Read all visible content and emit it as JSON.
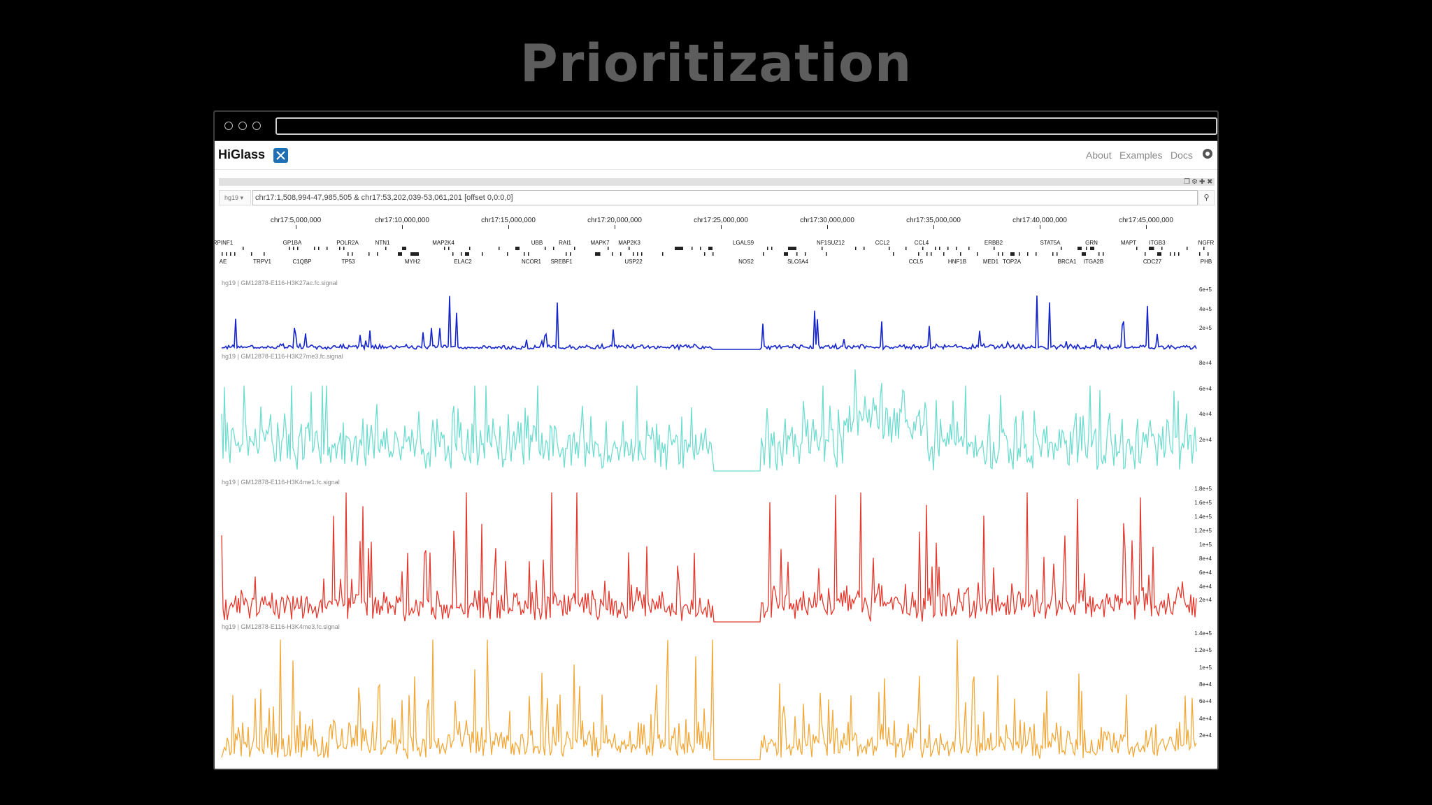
{
  "slide": {
    "title": "Prioritization"
  },
  "higlass": {
    "title": "HiGlass",
    "nav": [
      "About",
      "Examples",
      "Docs"
    ],
    "github_icon": "github-icon",
    "assembly": "hg19",
    "location": "chr17:1,508,994-47,985,505 & chr17:53,202,039-53,061,201 [offset 0,0:0,0]"
  },
  "axis_ticks": [
    "chr17:5,000,000",
    "chr17:10,000,000",
    "chr17:15,000,000",
    "chr17:20,000,000",
    "chr17:25,000,000",
    "chr17:30,000,000",
    "chr17:35,000,000",
    "chr17:40,000,000",
    "chr17:45,000,000"
  ],
  "genes_top": [
    "RPINF1",
    "GP1BA",
    "POLR2A",
    "NTN1",
    "MAP2K4",
    "UBB",
    "RAI1",
    "MAPK7",
    "MAP2K3",
    "LGALS9",
    "NF1SUZ12",
    "CCL2",
    "CCL4",
    "ERBB2",
    "STAT5A",
    "GRN",
    "MAPT",
    "ITGB3",
    "NGFR"
  ],
  "genes_bottom": [
    "AE",
    "TRPV1",
    "C1QBP",
    "TP53",
    "MYH2",
    "ELAC2",
    "NCOR1",
    "SREBF1",
    "USP22",
    "NOS2",
    "SLC6A4",
    "CCL5",
    "HNF1B",
    "MED1",
    "TOP2A",
    "BRCA1",
    "ITGA2B",
    "CDC27",
    "PHB"
  ],
  "tracks": [
    {
      "title": "hg19 | GM12878-E116-H3K27ac.fc.signal",
      "color": "#1525c9",
      "axis": [
        "6e+5",
        "4e+5",
        "2e+5"
      ]
    },
    {
      "title": "hg19 | GM12878-E116-H3K27me3.fc.signal",
      "color": "#6fdcd0",
      "axis": [
        "8e+4",
        "6e+4",
        "4e+4",
        "2e+4"
      ]
    },
    {
      "title": "hg19 | GM12878-E116-H3K4me1.fc.signal",
      "color": "#e23a2e",
      "axis": [
        "1.8e+5",
        "1.6e+5",
        "1.4e+5",
        "1.2e+5",
        "1e+5",
        "8e+4",
        "6e+4",
        "4e+4",
        "2e+4"
      ]
    },
    {
      "title": "hg19 | GM12878-E116-H3K4me3.fc.signal",
      "color": "#f0a93a",
      "axis": [
        "1.4e+5",
        "1.2e+5",
        "1e+5",
        "8e+4",
        "6e+4",
        "4e+4",
        "2e+4"
      ]
    }
  ]
}
